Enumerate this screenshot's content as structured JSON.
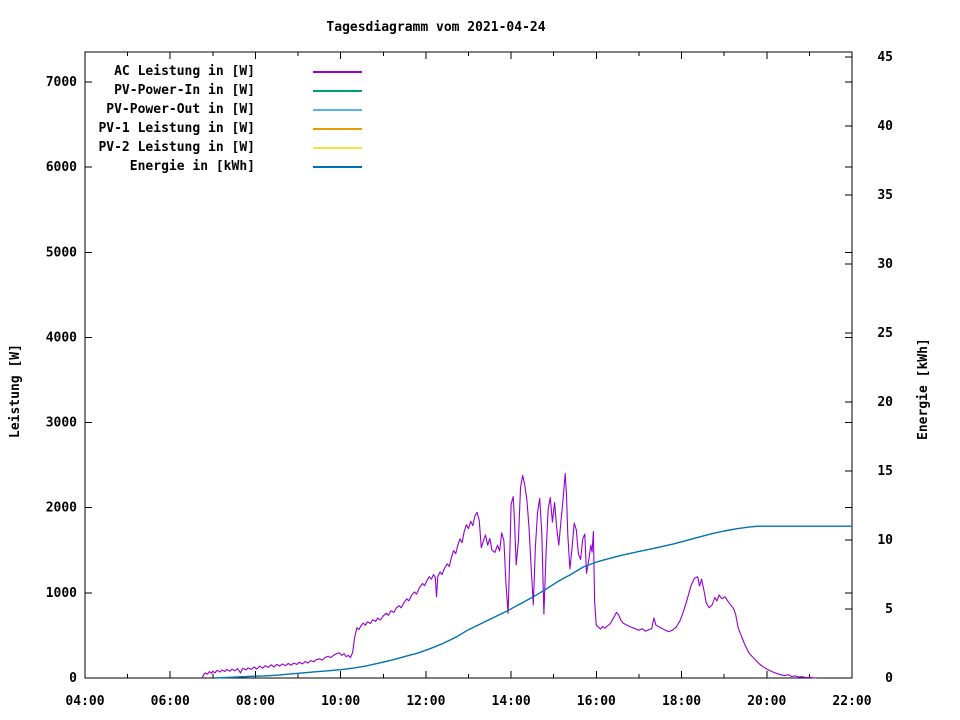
{
  "chart_data": {
    "type": "line",
    "title": "Tagesdiagramm vom 2021-04-24",
    "x_axis": {
      "range_hours": [
        4,
        22
      ],
      "tick_hours": [
        4,
        6,
        8,
        10,
        12,
        14,
        16,
        18,
        20,
        22
      ],
      "tick_labels": [
        "04:00",
        "06:00",
        "08:00",
        "10:00",
        "12:00",
        "14:00",
        "16:00",
        "18:00",
        "20:00",
        "22:00"
      ],
      "minor_tick_hours": [
        5,
        7,
        9,
        11,
        13,
        15,
        17,
        19,
        21
      ]
    },
    "y_left": {
      "label": "Leistung [W]",
      "range": [
        0,
        7352
      ],
      "ticks": [
        0,
        1000,
        2000,
        3000,
        4000,
        5000,
        6000,
        7000
      ],
      "tick_labels": [
        "0",
        "1000",
        "2000",
        "3000",
        "4000",
        "5000",
        "6000",
        "7000"
      ]
    },
    "y_right": {
      "label": "Energie [kWh]",
      "range": [
        0,
        45.36
      ],
      "ticks": [
        0,
        5,
        10,
        15,
        20,
        25,
        30,
        35,
        40,
        45
      ],
      "tick_labels": [
        "0",
        "5",
        "10",
        "15",
        "20",
        "25",
        "30",
        "35",
        "40",
        "45"
      ]
    },
    "legend": [
      {
        "label": "AC Leistung in [W]",
        "color": "#9400d3"
      },
      {
        "label": "PV-Power-In in [W]",
        "color": "#009e73"
      },
      {
        "label": "PV-Power-Out in [W]",
        "color": "#56b4e9"
      },
      {
        "label": "PV-1 Leistung in [W]",
        "color": "#e69f00"
      },
      {
        "label": "PV-2 Leistung in [W]",
        "color": "#f0e442"
      },
      {
        "label": "Energie in [kWh]",
        "color": "#0072b2"
      }
    ],
    "series": [
      {
        "name": "AC Leistung in [W]",
        "axis": "left",
        "color": "#9400d3",
        "points": [
          [
            6.75,
            0
          ],
          [
            6.78,
            35
          ],
          [
            6.82,
            60
          ],
          [
            6.87,
            45
          ],
          [
            6.92,
            75
          ],
          [
            6.97,
            55
          ],
          [
            7.0,
            80
          ],
          [
            7.05,
            60
          ],
          [
            7.1,
            90
          ],
          [
            7.17,
            70
          ],
          [
            7.22,
            95
          ],
          [
            7.28,
            75
          ],
          [
            7.33,
            100
          ],
          [
            7.4,
            80
          ],
          [
            7.45,
            105
          ],
          [
            7.52,
            85
          ],
          [
            7.58,
            110
          ],
          [
            7.65,
            60
          ],
          [
            7.7,
            115
          ],
          [
            7.78,
            95
          ],
          [
            7.83,
            120
          ],
          [
            7.9,
            100
          ],
          [
            7.97,
            130
          ],
          [
            8.03,
            105
          ],
          [
            8.1,
            140
          ],
          [
            8.17,
            115
          ],
          [
            8.23,
            145
          ],
          [
            8.3,
            125
          ],
          [
            8.37,
            155
          ],
          [
            8.43,
            130
          ],
          [
            8.5,
            160
          ],
          [
            8.57,
            140
          ],
          [
            8.63,
            165
          ],
          [
            8.7,
            145
          ],
          [
            8.77,
            170
          ],
          [
            8.83,
            150
          ],
          [
            8.9,
            175
          ],
          [
            8.97,
            160
          ],
          [
            9.03,
            185
          ],
          [
            9.1,
            165
          ],
          [
            9.17,
            195
          ],
          [
            9.23,
            175
          ],
          [
            9.3,
            205
          ],
          [
            9.37,
            190
          ],
          [
            9.43,
            215
          ],
          [
            9.5,
            225
          ],
          [
            9.57,
            210
          ],
          [
            9.63,
            240
          ],
          [
            9.7,
            255
          ],
          [
            9.77,
            240
          ],
          [
            9.83,
            265
          ],
          [
            9.9,
            285
          ],
          [
            9.97,
            295
          ],
          [
            10.03,
            265
          ],
          [
            10.08,
            285
          ],
          [
            10.13,
            250
          ],
          [
            10.18,
            265
          ],
          [
            10.23,
            240
          ],
          [
            10.28,
            300
          ],
          [
            10.33,
            480
          ],
          [
            10.38,
            590
          ],
          [
            10.43,
            570
          ],
          [
            10.48,
            615
          ],
          [
            10.53,
            645
          ],
          [
            10.58,
            620
          ],
          [
            10.63,
            660
          ],
          [
            10.7,
            640
          ],
          [
            10.75,
            685
          ],
          [
            10.82,
            665
          ],
          [
            10.87,
            705
          ],
          [
            10.93,
            680
          ],
          [
            11.0,
            730
          ],
          [
            11.07,
            760
          ],
          [
            11.12,
            735
          ],
          [
            11.18,
            790
          ],
          [
            11.25,
            770
          ],
          [
            11.3,
            820
          ],
          [
            11.37,
            850
          ],
          [
            11.42,
            825
          ],
          [
            11.48,
            880
          ],
          [
            11.55,
            930
          ],
          [
            11.6,
            905
          ],
          [
            11.67,
            975
          ],
          [
            11.73,
            1010
          ],
          [
            11.78,
            985
          ],
          [
            11.85,
            1060
          ],
          [
            11.92,
            1110
          ],
          [
            11.97,
            1085
          ],
          [
            12.03,
            1150
          ],
          [
            12.08,
            1190
          ],
          [
            12.13,
            1160
          ],
          [
            12.18,
            1215
          ],
          [
            12.22,
            1180
          ],
          [
            12.25,
            955
          ],
          [
            12.28,
            1190
          ],
          [
            12.33,
            1245
          ],
          [
            12.38,
            1215
          ],
          [
            12.43,
            1280
          ],
          [
            12.5,
            1340
          ],
          [
            12.55,
            1310
          ],
          [
            12.6,
            1420
          ],
          [
            12.65,
            1495
          ],
          [
            12.7,
            1460
          ],
          [
            12.75,
            1560
          ],
          [
            12.8,
            1635
          ],
          [
            12.85,
            1590
          ],
          [
            12.9,
            1720
          ],
          [
            12.95,
            1800
          ],
          [
            13.0,
            1755
          ],
          [
            13.05,
            1840
          ],
          [
            13.1,
            1790
          ],
          [
            13.15,
            1905
          ],
          [
            13.2,
            1945
          ],
          [
            13.25,
            1855
          ],
          [
            13.3,
            1530
          ],
          [
            13.35,
            1610
          ],
          [
            13.4,
            1680
          ],
          [
            13.45,
            1560
          ],
          [
            13.5,
            1640
          ],
          [
            13.55,
            1505
          ],
          [
            13.62,
            1475
          ],
          [
            13.68,
            1560
          ],
          [
            13.73,
            1490
          ],
          [
            13.78,
            1705
          ],
          [
            13.83,
            1610
          ],
          [
            13.88,
            1100
          ],
          [
            13.93,
            760
          ],
          [
            13.97,
            1450
          ],
          [
            14.0,
            2040
          ],
          [
            14.05,
            2130
          ],
          [
            14.08,
            1840
          ],
          [
            14.12,
            1330
          ],
          [
            14.17,
            1610
          ],
          [
            14.22,
            2230
          ],
          [
            14.27,
            2380
          ],
          [
            14.32,
            2270
          ],
          [
            14.37,
            2090
          ],
          [
            14.42,
            1770
          ],
          [
            14.47,
            1310
          ],
          [
            14.52,
            860
          ],
          [
            14.57,
            1540
          ],
          [
            14.62,
            1940
          ],
          [
            14.67,
            2110
          ],
          [
            14.72,
            1700
          ],
          [
            14.77,
            750
          ],
          [
            14.82,
            1480
          ],
          [
            14.87,
            1990
          ],
          [
            14.92,
            2120
          ],
          [
            14.97,
            1830
          ],
          [
            15.02,
            2060
          ],
          [
            15.07,
            1760
          ],
          [
            15.12,
            1560
          ],
          [
            15.17,
            1850
          ],
          [
            15.22,
            2100
          ],
          [
            15.27,
            2400
          ],
          [
            15.3,
            2150
          ],
          [
            15.33,
            1680
          ],
          [
            15.38,
            1280
          ],
          [
            15.43,
            1520
          ],
          [
            15.48,
            1820
          ],
          [
            15.53,
            1740
          ],
          [
            15.58,
            1460
          ],
          [
            15.63,
            1390
          ],
          [
            15.68,
            1630
          ],
          [
            15.73,
            1690
          ],
          [
            15.77,
            1230
          ],
          [
            15.82,
            1380
          ],
          [
            15.87,
            1560
          ],
          [
            15.9,
            1480
          ],
          [
            15.93,
            1720
          ],
          [
            15.96,
            900
          ],
          [
            16.0,
            620
          ],
          [
            16.05,
            595
          ],
          [
            16.1,
            575
          ],
          [
            16.15,
            605
          ],
          [
            16.2,
            585
          ],
          [
            16.27,
            615
          ],
          [
            16.33,
            640
          ],
          [
            16.42,
            720
          ],
          [
            16.47,
            770
          ],
          [
            16.52,
            745
          ],
          [
            16.58,
            675
          ],
          [
            16.63,
            645
          ],
          [
            16.7,
            625
          ],
          [
            16.78,
            605
          ],
          [
            16.85,
            590
          ],
          [
            16.93,
            575
          ],
          [
            17.0,
            560
          ],
          [
            17.08,
            580
          ],
          [
            17.15,
            550
          ],
          [
            17.22,
            565
          ],
          [
            17.3,
            580
          ],
          [
            17.35,
            705
          ],
          [
            17.4,
            620
          ],
          [
            17.53,
            585
          ],
          [
            17.62,
            560
          ],
          [
            17.7,
            545
          ],
          [
            17.78,
            560
          ],
          [
            17.88,
            600
          ],
          [
            17.97,
            680
          ],
          [
            18.05,
            790
          ],
          [
            18.13,
            920
          ],
          [
            18.22,
            1080
          ],
          [
            18.3,
            1170
          ],
          [
            18.38,
            1190
          ],
          [
            18.42,
            1080
          ],
          [
            18.47,
            1160
          ],
          [
            18.53,
            1020
          ],
          [
            18.58,
            880
          ],
          [
            18.65,
            825
          ],
          [
            18.72,
            860
          ],
          [
            18.78,
            945
          ],
          [
            18.83,
            905
          ],
          [
            18.88,
            975
          ],
          [
            18.95,
            930
          ],
          [
            19.02,
            955
          ],
          [
            19.08,
            905
          ],
          [
            19.15,
            860
          ],
          [
            19.22,
            815
          ],
          [
            19.27,
            745
          ],
          [
            19.33,
            590
          ],
          [
            19.42,
            470
          ],
          [
            19.5,
            375
          ],
          [
            19.58,
            295
          ],
          [
            19.67,
            245
          ],
          [
            19.75,
            205
          ],
          [
            19.83,
            165
          ],
          [
            19.92,
            130
          ],
          [
            20.0,
            105
          ],
          [
            20.08,
            85
          ],
          [
            20.17,
            65
          ],
          [
            20.25,
            50
          ],
          [
            20.33,
            38
          ],
          [
            20.42,
            28
          ],
          [
            20.5,
            40
          ],
          [
            20.58,
            18
          ],
          [
            20.67,
            25
          ],
          [
            20.75,
            10
          ],
          [
            20.83,
            15
          ],
          [
            20.92,
            5
          ],
          [
            21.0,
            8
          ],
          [
            21.08,
            2
          ],
          [
            21.17,
            0
          ]
        ]
      },
      {
        "name": "Energie in [kWh]",
        "axis": "right",
        "color": "#0072b2",
        "points": [
          [
            7.05,
            0
          ],
          [
            7.3,
            0.03
          ],
          [
            7.6,
            0.07
          ],
          [
            7.9,
            0.12
          ],
          [
            8.2,
            0.15
          ],
          [
            8.5,
            0.2
          ],
          [
            8.8,
            0.28
          ],
          [
            9.1,
            0.37
          ],
          [
            9.4,
            0.45
          ],
          [
            9.7,
            0.52
          ],
          [
            10.0,
            0.6
          ],
          [
            10.3,
            0.72
          ],
          [
            10.6,
            0.88
          ],
          [
            10.9,
            1.08
          ],
          [
            11.2,
            1.3
          ],
          [
            11.5,
            1.55
          ],
          [
            11.8,
            1.8
          ],
          [
            12.1,
            2.12
          ],
          [
            12.4,
            2.5
          ],
          [
            12.7,
            2.95
          ],
          [
            13.0,
            3.5
          ],
          [
            13.3,
            3.95
          ],
          [
            13.6,
            4.4
          ],
          [
            13.9,
            4.85
          ],
          [
            14.2,
            5.35
          ],
          [
            14.5,
            5.85
          ],
          [
            14.8,
            6.4
          ],
          [
            15.1,
            7.0
          ],
          [
            15.4,
            7.5
          ],
          [
            15.7,
            8.05
          ],
          [
            16.0,
            8.4
          ],
          [
            16.3,
            8.65
          ],
          [
            16.6,
            8.9
          ],
          [
            16.9,
            9.1
          ],
          [
            17.2,
            9.3
          ],
          [
            17.5,
            9.5
          ],
          [
            17.8,
            9.7
          ],
          [
            18.1,
            9.95
          ],
          [
            18.4,
            10.2
          ],
          [
            18.7,
            10.45
          ],
          [
            19.0,
            10.65
          ],
          [
            19.3,
            10.82
          ],
          [
            19.6,
            10.95
          ],
          [
            19.8,
            11.0
          ],
          [
            20.2,
            11.0
          ],
          [
            20.7,
            11.0
          ],
          [
            21.2,
            11.0
          ],
          [
            21.7,
            11.0
          ],
          [
            22.0,
            11.0
          ]
        ]
      }
    ]
  }
}
